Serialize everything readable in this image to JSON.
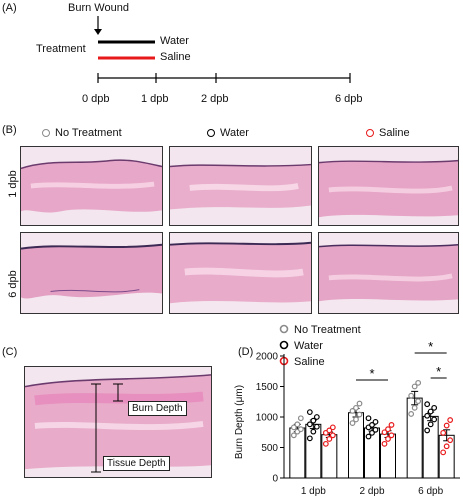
{
  "panel_a": {
    "label": "(A)",
    "burn_wound": "Burn Wound",
    "treatment": "Treatment",
    "water": "Water",
    "saline": "Saline",
    "colors": {
      "water": "#000000",
      "saline": "#e8191b"
    },
    "ticks": [
      "0 dpb",
      "1 dpb",
      "2 dpb",
      "6 dpb"
    ]
  },
  "panel_b": {
    "label": "(B)",
    "legend": [
      "No Treatment",
      "Water",
      "Saline"
    ],
    "legend_colors": [
      "#8a8a8a",
      "#000000",
      "#e8191b"
    ],
    "rows": [
      "1 dpb",
      "6 dpb"
    ]
  },
  "panel_c": {
    "label": "(C)",
    "burn_depth": "Burn Depth",
    "tissue_depth": "Tissue Depth"
  },
  "panel_d": {
    "label": "(D)",
    "legend": [
      "No Treatment",
      "Water",
      "Saline"
    ],
    "sig_marker": "*"
  },
  "chart_data": {
    "type": "bar",
    "ylabel": "Burn Depth (μm)",
    "ylim": [
      0,
      2000
    ],
    "yticks": [
      0,
      500,
      1000,
      1500,
      2000
    ],
    "categories": [
      "1 dpb",
      "2 dpb",
      "6 dpb"
    ],
    "series": [
      {
        "name": "No Treatment",
        "color": "#8a8a8a",
        "values": [
          820,
          1070,
          1310
        ],
        "errors": [
          60,
          70,
          110
        ],
        "points": [
          [
            700,
            760,
            800,
            830,
            880,
            980
          ],
          [
            900,
            960,
            1040,
            1100,
            1150,
            1220
          ],
          [
            1050,
            1150,
            1260,
            1350,
            1500,
            1560
          ]
        ]
      },
      {
        "name": "Water",
        "color": "#000000",
        "values": [
          880,
          820,
          1010
        ],
        "errors": [
          70,
          50,
          70
        ],
        "points": [
          [
            650,
            760,
            840,
            880,
            940,
            1000,
            1080
          ],
          [
            680,
            740,
            790,
            830,
            870,
            920,
            980
          ],
          [
            780,
            880,
            960,
            1020,
            1090,
            1150,
            1210
          ]
        ]
      },
      {
        "name": "Saline",
        "color": "#e8191b",
        "values": [
          710,
          720,
          700
        ],
        "errors": [
          45,
          55,
          90
        ],
        "points": [
          [
            560,
            640,
            700,
            740,
            780,
            830
          ],
          [
            560,
            640,
            700,
            750,
            800,
            870
          ],
          [
            420,
            520,
            620,
            740,
            860,
            950
          ]
        ]
      }
    ],
    "significance": [
      {
        "category": "2 dpb",
        "from": "No Treatment",
        "to": "Saline",
        "label": "*"
      },
      {
        "category": "6 dpb",
        "from": "No Treatment",
        "to": "Saline",
        "label": "*"
      },
      {
        "category": "6 dpb",
        "from": "Water",
        "to": "Saline",
        "label": "*"
      }
    ]
  }
}
